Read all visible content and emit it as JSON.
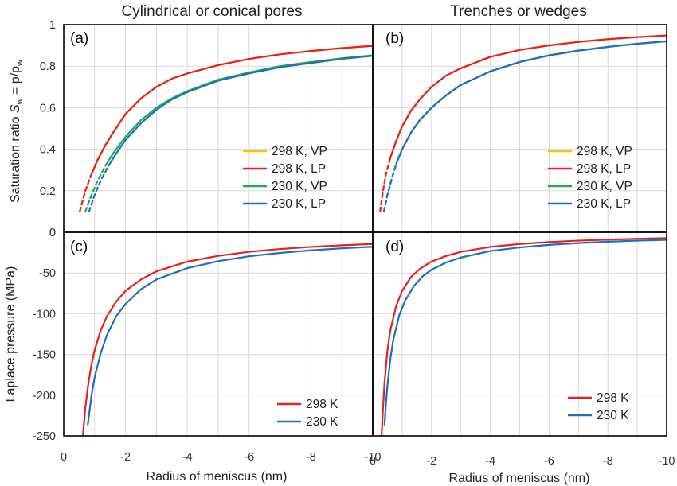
{
  "figure": {
    "column_titles": [
      "Cylindrical or conical pores",
      "Trenches or wedges"
    ],
    "top_ylabel_main": "Saturation ratio ",
    "top_ylabel_sym": "S",
    "top_ylabel_sub": "w",
    "top_ylabel_eq": " = p/p",
    "top_ylabel_sub2": "w",
    "bottom_ylabel": "Laplace pressure (MPa)",
    "xlabel": "Radius of meniscus (nm)"
  },
  "colors": {
    "298K_VP": "#FFC000",
    "298K_LP": "#E8201E",
    "230K_VP": "#1FAA4A",
    "230K_LP": "#1F6FC0",
    "298K": "#E8201E",
    "230K": "#1F6FC0"
  },
  "chart_data": [
    {
      "type": "line",
      "panel": "(a)",
      "xlim": [
        0,
        -10
      ],
      "ylim": [
        0,
        1
      ],
      "xticks": [
        "0",
        "-2",
        "-4",
        "-6",
        "-8",
        "-10"
      ],
      "yticks": [
        "0",
        "0.2",
        "0.4",
        "0.6",
        "0.8",
        "1"
      ],
      "grid": true,
      "legend_position": "right-middle",
      "series": [
        {
          "name": "298 K, VP",
          "color_key": "298K_VP",
          "dashed_from": 0.1,
          "dashed_to": 0.26,
          "x": [
            -0.52,
            -0.7,
            -0.9,
            -1.1,
            -1.35,
            -1.6,
            -2,
            -2.5,
            -3,
            -3.5,
            -4,
            -5,
            -6,
            -7,
            -8,
            -9,
            -10
          ],
          "y": [
            0.1,
            0.2,
            0.28,
            0.35,
            0.42,
            0.48,
            0.57,
            0.645,
            0.7,
            0.74,
            0.765,
            0.805,
            0.835,
            0.857,
            0.873,
            0.887,
            0.898
          ]
        },
        {
          "name": "298 K, LP",
          "color_key": "298K_LP",
          "dashed_from": 0.1,
          "dashed_to": 0.26,
          "x": [
            -0.52,
            -0.7,
            -0.9,
            -1.1,
            -1.35,
            -1.6,
            -2,
            -2.5,
            -3,
            -3.5,
            -4,
            -5,
            -6,
            -7,
            -8,
            -9,
            -10
          ],
          "y": [
            0.1,
            0.2,
            0.28,
            0.35,
            0.42,
            0.48,
            0.57,
            0.645,
            0.7,
            0.74,
            0.765,
            0.805,
            0.835,
            0.857,
            0.873,
            0.887,
            0.898
          ]
        },
        {
          "name": "230 K, VP",
          "color_key": "230K_VP",
          "dashed_from": 0.1,
          "dashed_to": 0.27,
          "x": [
            -0.7,
            -0.9,
            -1.1,
            -1.35,
            -1.6,
            -2,
            -2.5,
            -3,
            -3.5,
            -4,
            -5,
            -6,
            -7,
            -8,
            -9,
            -10
          ],
          "y": [
            0.1,
            0.18,
            0.25,
            0.32,
            0.38,
            0.46,
            0.54,
            0.6,
            0.645,
            0.68,
            0.735,
            0.77,
            0.8,
            0.82,
            0.838,
            0.852
          ]
        },
        {
          "name": "230 K, LP",
          "color_key": "230K_LP",
          "dashed_from": 0.1,
          "dashed_to": 0.27,
          "x": [
            -0.82,
            -1.0,
            -1.2,
            -1.45,
            -1.7,
            -2,
            -2.5,
            -3,
            -3.5,
            -4,
            -5,
            -6,
            -7,
            -8,
            -9,
            -10
          ],
          "y": [
            0.1,
            0.18,
            0.25,
            0.32,
            0.38,
            0.445,
            0.525,
            0.59,
            0.64,
            0.675,
            0.73,
            0.765,
            0.795,
            0.815,
            0.835,
            0.85
          ]
        }
      ]
    },
    {
      "type": "line",
      "panel": "(b)",
      "xlim": [
        0,
        -10
      ],
      "ylim": [
        0,
        1
      ],
      "grid": true,
      "legend_position": "right-bottom",
      "series": [
        {
          "name": "298 K, VP",
          "color_key": "298K_VP",
          "dashed_from": 0.1,
          "dashed_to": 0.3,
          "x": [
            -0.25,
            -0.35,
            -0.45,
            -0.6,
            -0.8,
            -1,
            -1.3,
            -1.6,
            -2,
            -2.5,
            -3,
            -4,
            -5,
            -6,
            -7,
            -8,
            -9,
            -10
          ],
          "y": [
            0.1,
            0.2,
            0.28,
            0.36,
            0.44,
            0.51,
            0.585,
            0.64,
            0.7,
            0.755,
            0.79,
            0.845,
            0.878,
            0.9,
            0.917,
            0.93,
            0.94,
            0.948
          ]
        },
        {
          "name": "298 K, LP",
          "color_key": "298K_LP",
          "dashed_from": 0.1,
          "dashed_to": 0.3,
          "x": [
            -0.25,
            -0.35,
            -0.45,
            -0.6,
            -0.8,
            -1,
            -1.3,
            -1.6,
            -2,
            -2.5,
            -3,
            -4,
            -5,
            -6,
            -7,
            -8,
            -9,
            -10
          ],
          "y": [
            0.1,
            0.2,
            0.28,
            0.36,
            0.44,
            0.51,
            0.585,
            0.64,
            0.7,
            0.755,
            0.79,
            0.845,
            0.878,
            0.9,
            0.917,
            0.93,
            0.94,
            0.948
          ]
        },
        {
          "name": "230 K, VP",
          "color_key": "230K_VP",
          "dashed_from": 0.1,
          "dashed_to": 0.3,
          "x": [
            -0.38,
            -0.5,
            -0.65,
            -0.8,
            -1,
            -1.3,
            -1.6,
            -2,
            -2.5,
            -3,
            -4,
            -5,
            -6,
            -7,
            -8,
            -9,
            -10
          ],
          "y": [
            0.1,
            0.18,
            0.26,
            0.33,
            0.4,
            0.48,
            0.54,
            0.6,
            0.66,
            0.71,
            0.775,
            0.82,
            0.852,
            0.875,
            0.893,
            0.908,
            0.92
          ]
        },
        {
          "name": "230 K, LP",
          "color_key": "230K_LP",
          "dashed_from": 0.1,
          "dashed_to": 0.3,
          "x": [
            -0.38,
            -0.5,
            -0.65,
            -0.8,
            -1,
            -1.3,
            -1.6,
            -2,
            -2.5,
            -3,
            -4,
            -5,
            -6,
            -7,
            -8,
            -9,
            -10
          ],
          "y": [
            0.1,
            0.18,
            0.26,
            0.33,
            0.4,
            0.48,
            0.54,
            0.6,
            0.66,
            0.71,
            0.775,
            0.82,
            0.852,
            0.875,
            0.893,
            0.908,
            0.92
          ]
        }
      ]
    },
    {
      "type": "line",
      "panel": "(c)",
      "xlim": [
        0,
        -10
      ],
      "ylim": [
        -250,
        0
      ],
      "xticks": [
        "0",
        "-2",
        "-4",
        "-6",
        "-8",
        "-10"
      ],
      "yticks": [
        "0",
        "-50",
        "-100",
        "-150",
        "-200",
        "-250"
      ],
      "grid": true,
      "legend_position": "right-bottom",
      "series": [
        {
          "name": "298 K",
          "color_key": "298K",
          "x": [
            -0.62,
            -0.7,
            -0.8,
            -0.9,
            -1.0,
            -1.2,
            -1.4,
            -1.7,
            -2,
            -2.5,
            -3,
            -4,
            -5,
            -6,
            -7,
            -8,
            -9,
            -10
          ],
          "y": [
            -250,
            -215,
            -185,
            -162,
            -145,
            -120,
            -103,
            -85,
            -72,
            -58,
            -48,
            -36,
            -29,
            -24,
            -20.6,
            -18,
            -16,
            -14.4
          ]
        },
        {
          "name": "230 K",
          "color_key": "230K",
          "x": [
            -0.78,
            -0.9,
            -1.0,
            -1.2,
            -1.4,
            -1.7,
            -2,
            -2.5,
            -3,
            -4,
            -5,
            -6,
            -7,
            -8,
            -9,
            -10
          ],
          "y": [
            -236,
            -200,
            -178,
            -148,
            -126,
            -103,
            -88,
            -70,
            -58,
            -44,
            -35.5,
            -29.5,
            -25.4,
            -22.2,
            -19.7,
            -17.8
          ]
        }
      ]
    },
    {
      "type": "line",
      "panel": "(d)",
      "xlim": [
        0,
        -10
      ],
      "ylim": [
        -250,
        0
      ],
      "xticks": [
        "0",
        "-2",
        "-4",
        "-6",
        "-8",
        "-10"
      ],
      "grid": true,
      "legend_position": "right-bottom",
      "series": [
        {
          "name": "298 K",
          "color_key": "298K",
          "x": [
            -0.3,
            -0.35,
            -0.4,
            -0.5,
            -0.6,
            -0.8,
            -1,
            -1.3,
            -1.6,
            -2,
            -2.5,
            -3,
            -4,
            -5,
            -6,
            -7,
            -8,
            -9,
            -10
          ],
          "y": [
            -250,
            -215,
            -185,
            -145,
            -120,
            -90,
            -72,
            -55,
            -45,
            -36,
            -29,
            -24,
            -18,
            -14.4,
            -12,
            -10.3,
            -9,
            -8,
            -7.2
          ]
        },
        {
          "name": "230 K",
          "color_key": "230K",
          "x": [
            -0.4,
            -0.45,
            -0.5,
            -0.6,
            -0.7,
            -0.9,
            -1.1,
            -1.4,
            -1.7,
            -2,
            -2.5,
            -3,
            -4,
            -5,
            -6,
            -7,
            -8,
            -9,
            -10
          ],
          "y": [
            -236,
            -210,
            -188,
            -155,
            -132,
            -102,
            -84,
            -66,
            -54,
            -46,
            -37,
            -31,
            -23,
            -18.6,
            -15.5,
            -13.3,
            -11.6,
            -10.3,
            -9.3
          ]
        }
      ]
    }
  ]
}
